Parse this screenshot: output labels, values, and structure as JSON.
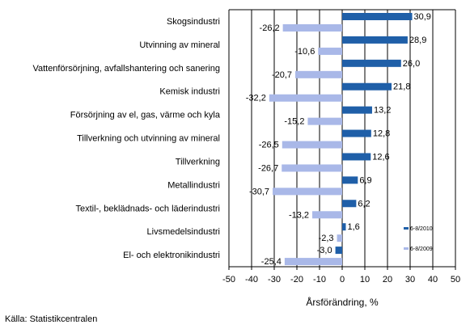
{
  "chart_data": {
    "type": "bar",
    "orientation": "horizontal",
    "categories": [
      "Skogsindustri",
      "Utvinning av mineral",
      "Vattenförsörjning, avfallshantering och sanering",
      "Kemisk industri",
      "Försörjning av el, gas, värme och kyla",
      "Tillverkning och utvinning av mineral",
      "Tillverkning",
      "Metallindustri",
      "Textil-, beklädnads- och läderindustri",
      "Livsmedelsindustri",
      "El- och elektronikindustri"
    ],
    "series": [
      {
        "name": "6-8/2010",
        "color": "#1f5fa8",
        "values": [
          30.9,
          28.9,
          26.0,
          21.8,
          13.2,
          12.8,
          12.6,
          6.9,
          6.2,
          1.6,
          -3.0
        ],
        "labels": [
          "30,9",
          "28,9",
          "26,0",
          "21,8",
          "13,2",
          "12,8",
          "12,6",
          "6,9",
          "6,2",
          "1,6",
          "-3,0"
        ]
      },
      {
        "name": "6-8/2009",
        "color": "#a9b8e8",
        "values": [
          -26.2,
          -10.6,
          -20.7,
          -32.2,
          -15.2,
          -26.5,
          -26.7,
          -30.7,
          -13.2,
          -2.3,
          -25.4
        ],
        "labels": [
          "-26,2",
          "-10,6",
          "-20,7",
          "-32,2",
          "-15,2",
          "-26,5",
          "-26,7",
          "-30,7",
          "-13,2",
          "-2,3",
          "-25,4"
        ]
      }
    ],
    "xlim": [
      -50,
      50
    ],
    "xticks": [
      -50,
      -40,
      -30,
      -20,
      -10,
      0,
      10,
      20,
      30,
      40,
      50
    ],
    "xlabel": "Årsförändring, %",
    "grid": "vertical",
    "legend": "right"
  },
  "source": "Källa: Statistikcentralen"
}
